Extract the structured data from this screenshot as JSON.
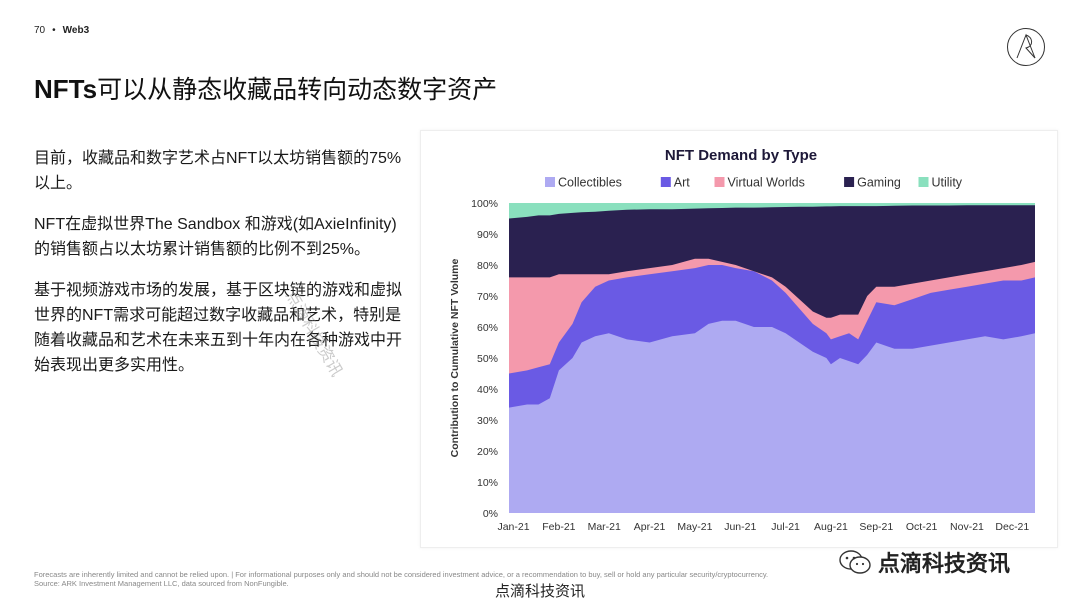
{
  "header": {
    "page_number": "70",
    "separator": "•",
    "section": "Web3"
  },
  "title": {
    "bold": "NFTs",
    "rest": "可以从静态收藏品转向动态数字资产"
  },
  "body": {
    "paragraphs": [
      "目前，收藏品和数字艺术占NFT以太坊销售额的75%以上。",
      "NFT在虚拟世界The Sandbox 和游戏(如AxieInfinity)的销售额占以太坊累计销售额的比例不到25%。",
      "基于视频游戏市场的发展，基于区块链的游戏和虚拟世界的NFT需求可能超过数字收藏品和艺术，特别是随着收藏品和艺术在未来五到十年内在各种游戏中开始表现出更多实用性。"
    ]
  },
  "footnote": {
    "line1": "Forecasts are inherently limited and cannot be relied upon. | For informational purposes only and should not be considered investment advice, or a recommendation to buy, sell or hold any particular security/cryptocurrency.",
    "line2": "Source: ARK Investment Management LLC, data sourced from NonFungible."
  },
  "footer": {
    "brand": "点滴科技资讯"
  },
  "watermarks": {
    "wechat": "点滴科技资讯",
    "diagonal": "点滴科技资讯"
  },
  "chart_data": {
    "type": "area",
    "stacked": true,
    "title": "NFT Demand by Type",
    "ylabel": "Contribution to Cumulative NFT Volume",
    "xlabel": "",
    "ylim": [
      0,
      100
    ],
    "y_ticks": [
      "0%",
      "10%",
      "20%",
      "30%",
      "40%",
      "50%",
      "60%",
      "70%",
      "80%",
      "90%",
      "100%"
    ],
    "x_ticks": [
      "Jan-21",
      "Feb-21",
      "Mar-21",
      "Apr-21",
      "May-21",
      "Jun-21",
      "Jul-21",
      "Aug-21",
      "Sep-21",
      "Oct-21",
      "Nov-21",
      "Dec-21"
    ],
    "x_tick_positions": [
      0,
      1,
      2,
      3,
      4,
      5,
      6,
      7,
      8,
      9,
      10,
      11
    ],
    "legend": [
      {
        "name": "Collectibles",
        "color": "#aeaaf2"
      },
      {
        "name": "Art",
        "color": "#6a5ae4"
      },
      {
        "name": "Virtual Worlds",
        "color": "#f499ac"
      },
      {
        "name": "Gaming",
        "color": "#2a2150"
      },
      {
        "name": "Utility",
        "color": "#8ae0be"
      }
    ],
    "x": [
      -0.1,
      0.3,
      0.55,
      0.8,
      1.0,
      1.3,
      1.5,
      1.8,
      2.1,
      2.5,
      3.0,
      3.5,
      4.0,
      4.3,
      4.6,
      4.9,
      5.3,
      5.7,
      6.0,
      6.3,
      6.6,
      6.9,
      7.0,
      7.2,
      7.4,
      7.6,
      7.8,
      8.0,
      8.4,
      8.8,
      9.2,
      9.6,
      10.0,
      10.4,
      10.8,
      11.2,
      11.5
    ],
    "cumulative": {
      "Collectibles": [
        34,
        35,
        35,
        37,
        46,
        50,
        55,
        57,
        58,
        56,
        55,
        57,
        58,
        61,
        62,
        62,
        60,
        60,
        58,
        55,
        52,
        50,
        48,
        50,
        49,
        48,
        51,
        55,
        53,
        53,
        54,
        55,
        56,
        57,
        56,
        57,
        58
      ],
      "Art": [
        45,
        46,
        47,
        48,
        55,
        61,
        68,
        73,
        75,
        76,
        77,
        78,
        79,
        80,
        80,
        79,
        78,
        75,
        71,
        66,
        61,
        58,
        56,
        57,
        58,
        56,
        62,
        68,
        67,
        69,
        71,
        72,
        73,
        74,
        75,
        75,
        76
      ],
      "Virtual Worlds": [
        76,
        76,
        76,
        76,
        77,
        77,
        77,
        77,
        77,
        78,
        79,
        80,
        82,
        82,
        81,
        80,
        78,
        76,
        73,
        69,
        65,
        63,
        63,
        64,
        64,
        64,
        70,
        73,
        73,
        74,
        75,
        76,
        77,
        78,
        79,
        80,
        81
      ],
      "Gaming": [
        95,
        95.5,
        96,
        96,
        96.5,
        96.8,
        97,
        97.2,
        97.5,
        97.8,
        98,
        98,
        98.2,
        98.3,
        98.4,
        98.5,
        98.5,
        98.6,
        98.7,
        98.8,
        98.8,
        98.9,
        98.9,
        99,
        99,
        99,
        99,
        99,
        99.1,
        99.2,
        99.2,
        99.2,
        99.3,
        99.3,
        99.3,
        99.3,
        99.3
      ],
      "Utility": [
        100,
        100,
        100,
        100,
        100,
        100,
        100,
        100,
        100,
        100,
        100,
        100,
        100,
        100,
        100,
        100,
        100,
        100,
        100,
        100,
        100,
        100,
        100,
        100,
        100,
        100,
        100,
        100,
        100,
        100,
        100,
        100,
        100,
        100,
        100,
        100,
        100
      ]
    }
  }
}
